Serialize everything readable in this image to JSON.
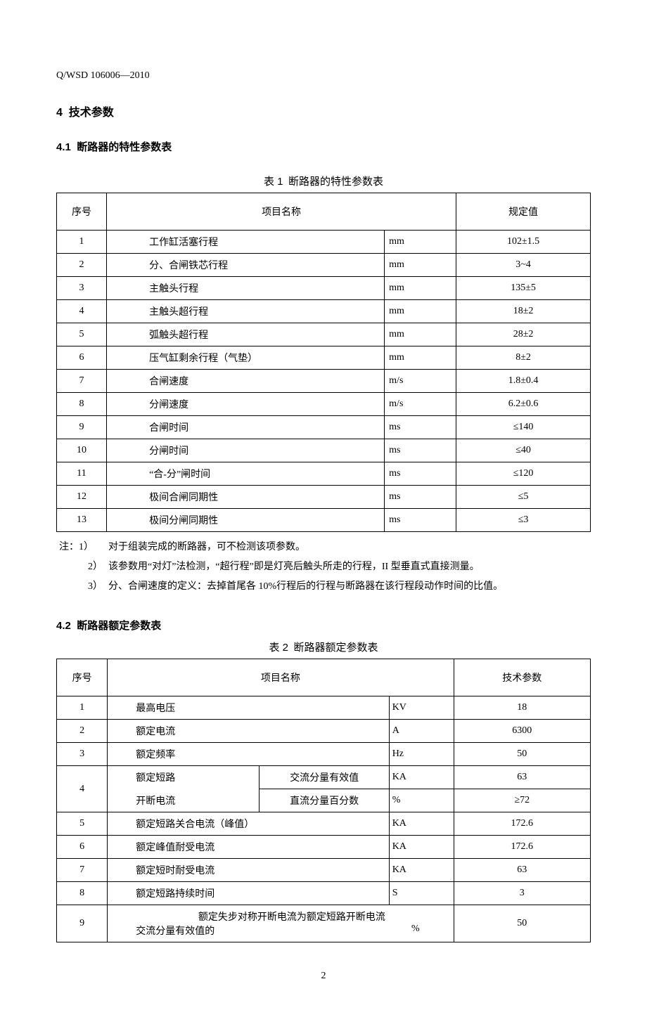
{
  "doc_code": "Q/WSD 106006—2010",
  "section4": {
    "num": "4",
    "title": "技术参数"
  },
  "section4_1": {
    "num": "4.1",
    "title": "断路器的特性参数表"
  },
  "table1": {
    "caption_num": "表 1",
    "caption_text": "断路器的特性参数表",
    "headers": {
      "seq": "序号",
      "name": "项目名称",
      "value": "规定值"
    },
    "rows": [
      {
        "seq": "1",
        "name": "工作缸活塞行程",
        "unit": "mm",
        "value": "102±1.5"
      },
      {
        "seq": "2",
        "name": "分、合闸铁芯行程",
        "unit": "mm",
        "value": "3~4"
      },
      {
        "seq": "3",
        "name": "主触头行程",
        "unit": "mm",
        "value": "135±5"
      },
      {
        "seq": "4",
        "name": "主触头超行程",
        "unit": "mm",
        "value": "18±2"
      },
      {
        "seq": "5",
        "name": "弧触头超行程",
        "unit": "mm",
        "value": "28±2"
      },
      {
        "seq": "6",
        "name": "压气缸剩余行程（气垫）",
        "unit": "mm",
        "value": "8±2"
      },
      {
        "seq": "7",
        "name": "合闸速度",
        "unit": "m/s",
        "value": "1.8±0.4"
      },
      {
        "seq": "8",
        "name": "分闸速度",
        "unit": "m/s",
        "value": "6.2±0.6"
      },
      {
        "seq": "9",
        "name": "合闸时间",
        "unit": "ms",
        "value": "≤140"
      },
      {
        "seq": "10",
        "name": "分闸时间",
        "unit": "ms",
        "value": "≤40"
      },
      {
        "seq": "11",
        "name": "“合-分”闸时间",
        "unit": "ms",
        "value": "≤120"
      },
      {
        "seq": "12",
        "name": "极间合闸同期性",
        "unit": "ms",
        "value": "≤5"
      },
      {
        "seq": "13",
        "name": "极间分闸同期性",
        "unit": "ms",
        "value": "≤3"
      }
    ],
    "notes_label": "注：",
    "notes": [
      {
        "n": "1）",
        "text": "对于组装完成的断路器，可不检测该项参数。"
      },
      {
        "n": "2）",
        "text": "该参数用“对灯”法检测，“超行程”即是灯亮后触头所走的行程，II 型垂直式直接测量。"
      },
      {
        "n": "3）",
        "text": "分、合闸速度的定义：去掉首尾各 10%行程后的行程与断路器在该行程段动作时间的比值。"
      }
    ]
  },
  "section4_2": {
    "num": "4.2",
    "title": "断路器额定参数表"
  },
  "table2": {
    "caption_num": "表 2",
    "caption_text": "断路器额定参数表",
    "headers": {
      "seq": "序号",
      "name": "项目名称",
      "value": "技术参数"
    },
    "rows": {
      "r1": {
        "seq": "1",
        "name": "最高电压",
        "unit": "KV",
        "value": "18"
      },
      "r2": {
        "seq": "2",
        "name": "额定电流",
        "unit": "A",
        "value": "6300"
      },
      "r3": {
        "seq": "3",
        "name": "额定频率",
        "unit": "Hz",
        "value": "50"
      },
      "r4a": {
        "seq": "4",
        "name1": "额定短路",
        "name2": "交流分量有效值",
        "unit": "KA",
        "value": "63"
      },
      "r4b": {
        "name1": "开断电流",
        "name2": "直流分量百分数",
        "unit": "%",
        "value": "≥72"
      },
      "r5": {
        "seq": "5",
        "name": "额定短路关合电流（峰值）",
        "unit": "KA",
        "value": "172.6"
      },
      "r6": {
        "seq": "6",
        "name": "额定峰值耐受电流",
        "unit": "KA",
        "value": "172.6"
      },
      "r7": {
        "seq": "7",
        "name": "额定短时耐受电流",
        "unit": "KA",
        "value": "63"
      },
      "r8": {
        "seq": "8",
        "name": "额定短路持续时间",
        "unit": "S",
        "value": "3"
      },
      "r9": {
        "seq": "9",
        "line1": "额定失步对称开断电流为额定短路开断电流",
        "line2": "交流分量有效值的",
        "unit": "%",
        "value": "50"
      }
    }
  },
  "page_number": "2"
}
